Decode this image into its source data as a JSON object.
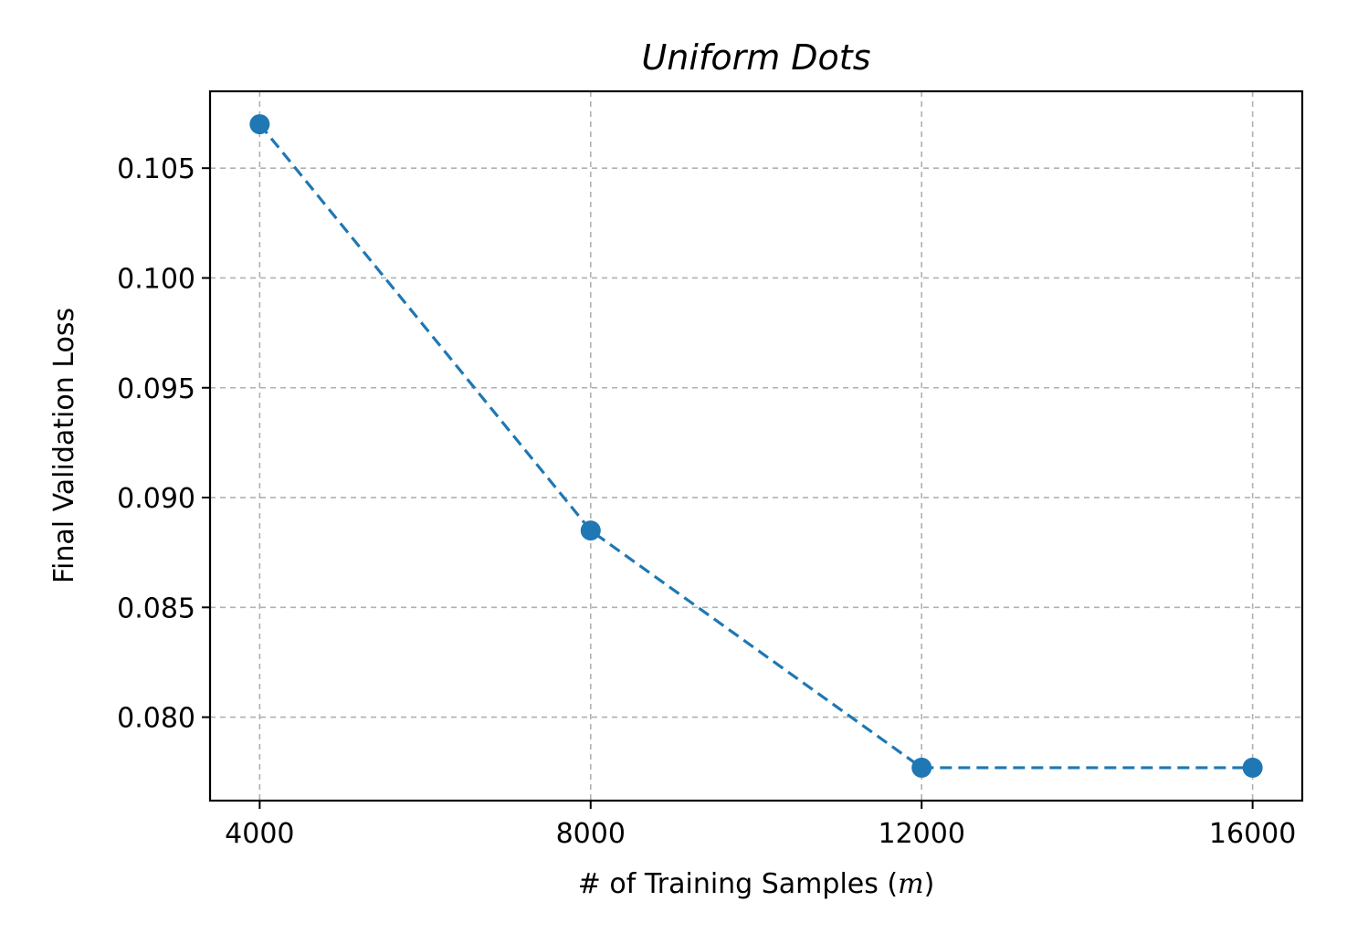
{
  "chart_data": {
    "type": "line",
    "title": "Uniform Dots",
    "xlabel": "# of Training Samples (",
    "xlabel_var": "m",
    "xlabel_close": ")",
    "ylabel": "Final Validation Loss",
    "x": [
      4000,
      8000,
      12000,
      16000
    ],
    "series": [
      {
        "values": [
          0.107,
          0.0885,
          0.0777,
          0.0777
        ],
        "color": "#1f77b4",
        "linestyle": "dashed",
        "marker": "circle"
      }
    ],
    "xticks": [
      4000,
      8000,
      12000,
      16000
    ],
    "xtick_labels": [
      "4000",
      "8000",
      "12000",
      "16000"
    ],
    "yticks": [
      0.08,
      0.085,
      0.09,
      0.095,
      0.1,
      0.105
    ],
    "ytick_labels": [
      "0.080",
      "0.085",
      "0.090",
      "0.095",
      "0.100",
      "0.105"
    ],
    "xlim": [
      3400,
      16600
    ],
    "ylim": [
      0.0762,
      0.1085
    ],
    "grid": true
  }
}
